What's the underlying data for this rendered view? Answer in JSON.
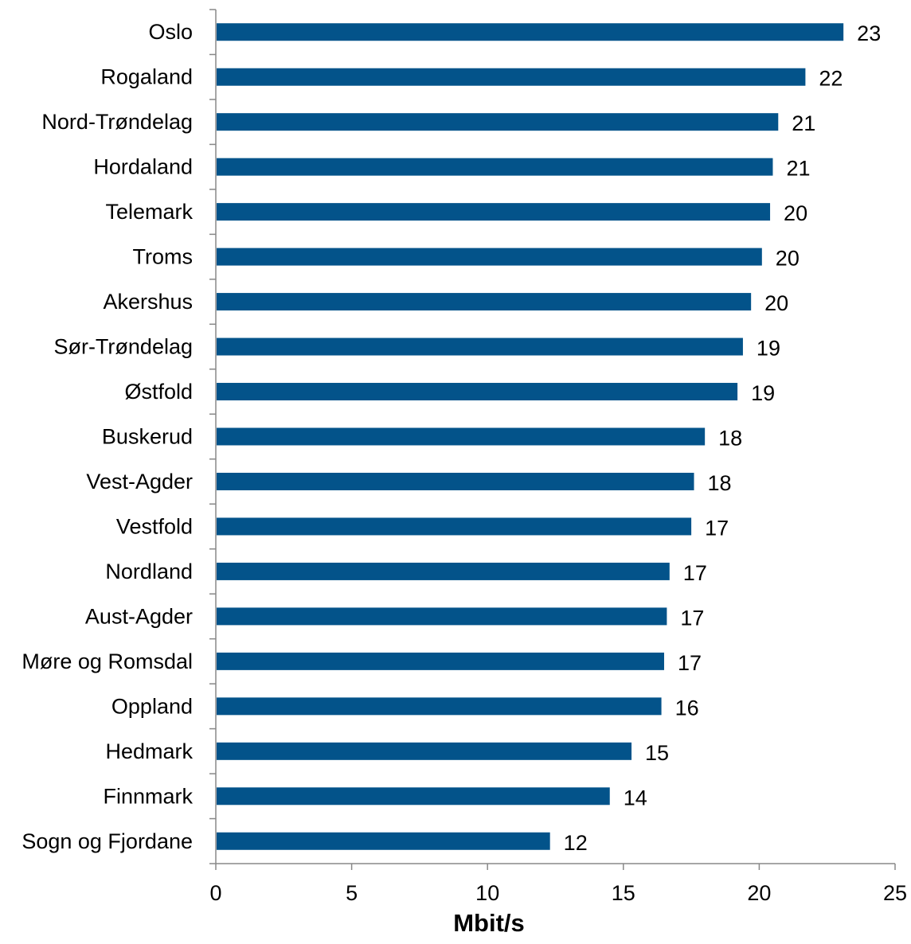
{
  "chart_data": {
    "type": "bar",
    "orientation": "horizontal",
    "categories": [
      "Oslo",
      "Rogaland",
      "Nord-Trøndelag",
      "Hordaland",
      "Telemark",
      "Troms",
      "Akershus",
      "Sør-Trøndelag",
      "Østfold",
      "Buskerud",
      "Vest-Agder",
      "Vestfold",
      "Nordland",
      "Aust-Agder",
      "Møre og Romsdal",
      "Oppland",
      "Hedmark",
      "Finnmark",
      "Sogn og Fjordane"
    ],
    "values": [
      23.1,
      21.7,
      20.7,
      20.5,
      20.4,
      20.1,
      19.7,
      19.4,
      19.2,
      18.0,
      17.6,
      17.5,
      16.7,
      16.6,
      16.5,
      16.4,
      15.3,
      14.5,
      12.3
    ],
    "value_labels": [
      "23",
      "22",
      "21",
      "21",
      "20",
      "20",
      "20",
      "19",
      "19",
      "18",
      "18",
      "17",
      "17",
      "17",
      "17",
      "16",
      "15",
      "14",
      "12"
    ],
    "xlabel": "Mbit/s",
    "ylabel": "",
    "xlim": [
      0,
      25
    ],
    "xticks": [
      "0",
      "5",
      "10",
      "15",
      "20",
      "25"
    ],
    "grid": false,
    "legend": "none",
    "bar_color": "#03538A"
  }
}
